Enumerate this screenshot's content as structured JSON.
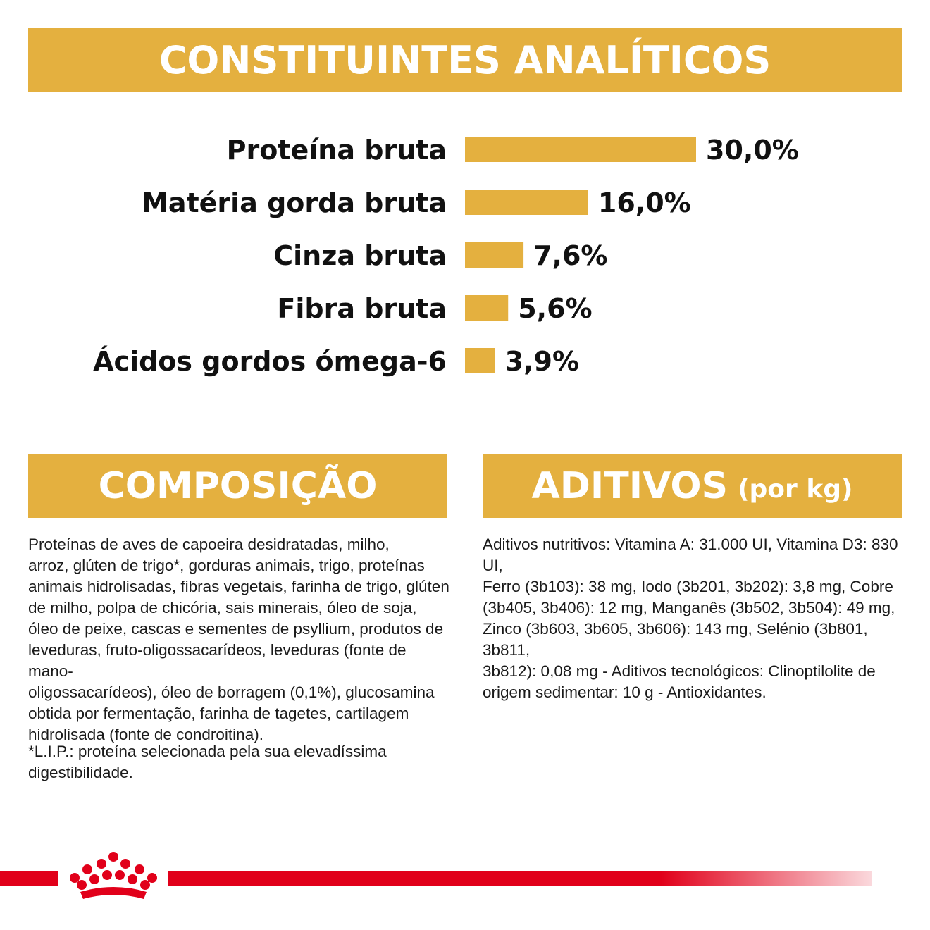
{
  "header": {
    "title": "CONSTITUINTES ANALÍTICOS"
  },
  "chart_data": {
    "type": "bar",
    "orientation": "horizontal",
    "title": "CONSTITUINTES ANALÍTICOS",
    "categories": [
      "Proteína bruta",
      "Matéria gorda bruta",
      "Cinza bruta",
      "Fibra bruta",
      "Ácidos gordos ómega-6"
    ],
    "values": [
      30.0,
      16.0,
      7.6,
      5.6,
      3.9
    ],
    "value_labels": [
      "30,0%",
      "16,0%",
      "7,6%",
      "5,6%",
      "3,9%"
    ],
    "unit": "%",
    "xlim": [
      0,
      30
    ],
    "bar_color": "#E4B03F"
  },
  "composition": {
    "title": "COMPOSIÇÃO",
    "text": "Proteínas de aves de capoeira desidratadas, milho,\narroz, glúten de trigo*, gorduras animais, trigo, proteínas\nanimais hidrolisadas, fibras vegetais, farinha de trigo, glúten\nde milho, polpa de chicória, sais minerais, óleo de soja,\nóleo de peixe, cascas e sementes de psyllium, produtos de\nleveduras, fruto-oligossacarídeos, leveduras (fonte de mano-\noligossacarídeos), óleo de borragem (0,1%), glucosamina\nobtida por fermentação, farinha de tagetes, cartilagem\nhidrolisada (fonte de condroitina).",
    "note": "*L.I.P.: proteína selecionada pela sua elevadíssima\ndigestibilidade."
  },
  "additives": {
    "title": "ADITIVOS",
    "title_suffix": "(por kg)",
    "text": "Aditivos nutritivos: Vitamina A: 31.000 UI, Vitamina D3: 830 UI,\nFerro (3b103): 38 mg, Iodo (3b201, 3b202): 3,8 mg, Cobre\n(3b405, 3b406): 12 mg, Manganês (3b502, 3b504): 49 mg,\nZinco (3b603, 3b605, 3b606): 143 mg, Selénio (3b801, 3b811,\n3b812): 0,08 mg - Aditivos tecnológicos: Clinoptilolite de\norigem sedimentar: 10 g - Antioxidantes."
  },
  "colors": {
    "accent": "#E4B03F",
    "brand_red": "#E1001A",
    "text": "#111111"
  },
  "footer": {
    "logo_icon": "crown-logo-icon"
  }
}
